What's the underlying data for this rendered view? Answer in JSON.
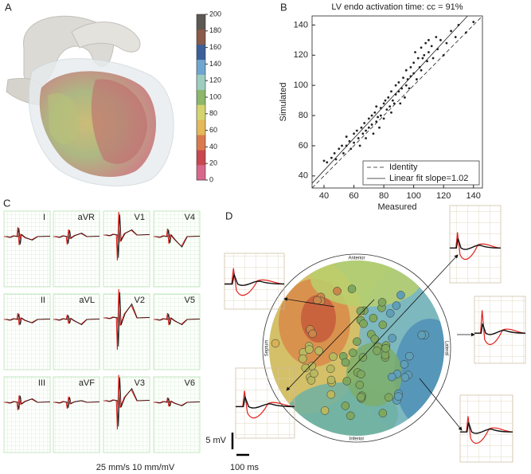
{
  "panel_labels": [
    "A",
    "B",
    "C",
    "D"
  ],
  "colorbar": {
    "ticks": [
      0,
      20,
      40,
      60,
      80,
      100,
      120,
      140,
      160,
      180,
      200
    ],
    "colors": [
      "#d8678c",
      "#c9474f",
      "#d97a4e",
      "#e3b95a",
      "#d4d46f",
      "#8db76b",
      "#9ccdbf",
      "#6fa6cf",
      "#3b5f99",
      "#8a5a4a",
      "#5c5852"
    ]
  },
  "chart_data": {
    "type": "scatter",
    "title": "LV endo activation time: cc = 91%",
    "x_label": "Measured",
    "y_label": "Simulated",
    "xlim": [
      32,
      146
    ],
    "ylim": [
      32,
      146
    ],
    "xticks": [
      40,
      60,
      80,
      100,
      120,
      140
    ],
    "yticks": [
      40,
      60,
      80,
      100,
      120,
      140
    ],
    "color": "#222222",
    "legend": {
      "corner": "lower right",
      "entries": [
        "Identity",
        "Linear fit slope=1.02"
      ]
    },
    "x": [
      40,
      42,
      45,
      47,
      48,
      50,
      52,
      53,
      55,
      55,
      57,
      58,
      60,
      60,
      62,
      63,
      64,
      65,
      66,
      67,
      68,
      68,
      70,
      70,
      72,
      72,
      73,
      74,
      75,
      75,
      76,
      77,
      78,
      78,
      80,
      80,
      81,
      82,
      83,
      84,
      85,
      85,
      86,
      87,
      88,
      88,
      90,
      90,
      91,
      92,
      93,
      94,
      95,
      95,
      96,
      97,
      98,
      98,
      100,
      100,
      101,
      102,
      103,
      104,
      105,
      105,
      106,
      107,
      108,
      109,
      110,
      110,
      112,
      113,
      115,
      116,
      118,
      120,
      122,
      125,
      128,
      130,
      135,
      140
    ],
    "values": [
      50,
      49,
      52,
      55,
      51,
      58,
      60,
      55,
      60,
      66,
      63,
      58,
      68,
      62,
      70,
      65,
      60,
      72,
      68,
      75,
      70,
      65,
      78,
      72,
      80,
      74,
      68,
      82,
      86,
      76,
      79,
      72,
      85,
      80,
      88,
      78,
      90,
      84,
      92,
      86,
      96,
      82,
      90,
      88,
      100,
      94,
      102,
      96,
      88,
      98,
      105,
      92,
      110,
      100,
      104,
      98,
      112,
      106,
      108,
      115,
      122,
      104,
      118,
      112,
      125,
      110,
      118,
      120,
      128,
      116,
      130,
      122,
      126,
      118,
      132,
      124,
      130,
      120,
      128,
      136,
      132,
      140,
      135,
      142
    ]
  },
  "ecg": {
    "leads": [
      "I",
      "aVR",
      "V1",
      "V4",
      "II",
      "aVL",
      "V2",
      "V5",
      "III",
      "aVF",
      "V3",
      "V6"
    ],
    "scale_label": "25 mm/s  10 mm/mV"
  },
  "bullseye": {
    "orientations": {
      "top": "Anterior",
      "left": "Septum",
      "right": "Lateral",
      "bottom": "Inferior"
    },
    "voltage_scale": "5 mV",
    "time_scale": "100 ms"
  }
}
